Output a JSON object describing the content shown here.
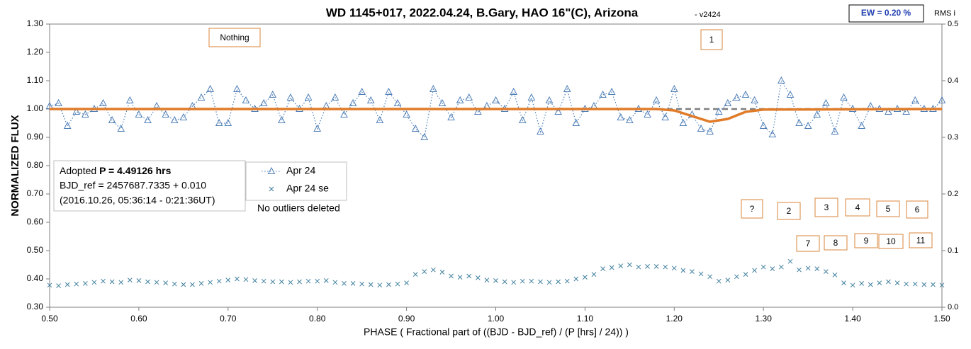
{
  "chart_data": {
    "type": "scatter",
    "title": "WD 1145+017, 2022.04.24, B.Gary, HAO 16\"(C), Arizona",
    "subtitle": "- v2424",
    "badge": "EW = 0.20 %",
    "x_label": "PHASE ( Fractional part of ((BJD - BJD_ref) / (P [hrs] / 24)) )",
    "y_label": "NORMALIZED FLUX",
    "y2_label": "RMS i",
    "info": {
      "lead": "Adopted ",
      "period": "P = 4.49126 hrs",
      "ref": "BJD_ref = 2457687.7335 + 0.010",
      "date": "(2016.10.26, 05:36:14 - 0:21:36UT)"
    },
    "note": "No outliers deleted",
    "annotations": [
      "Nothing",
      "1",
      "?",
      "2",
      "3",
      "4",
      "5",
      "6",
      "7",
      "8",
      "9",
      "10",
      "11"
    ],
    "x": [
      0.5,
      0.51,
      0.52,
      0.53,
      0.54,
      0.55,
      0.56,
      0.57,
      0.58,
      0.59,
      0.6,
      0.61,
      0.62,
      0.63,
      0.64,
      0.65,
      0.66,
      0.67,
      0.68,
      0.69,
      0.7,
      0.71,
      0.72,
      0.73,
      0.74,
      0.75,
      0.76,
      0.77,
      0.78,
      0.79,
      0.8,
      0.81,
      0.82,
      0.83,
      0.84,
      0.85,
      0.86,
      0.87,
      0.88,
      0.89,
      0.9,
      0.91,
      0.92,
      0.93,
      0.94,
      0.95,
      0.96,
      0.97,
      0.98,
      0.99,
      1.0,
      1.01,
      1.02,
      1.03,
      1.04,
      1.05,
      1.06,
      1.07,
      1.08,
      1.09,
      1.1,
      1.11,
      1.12,
      1.13,
      1.14,
      1.15,
      1.16,
      1.17,
      1.18,
      1.19,
      1.2,
      1.21,
      1.22,
      1.23,
      1.24,
      1.25,
      1.26,
      1.27,
      1.28,
      1.29,
      1.3,
      1.31,
      1.32,
      1.33,
      1.34,
      1.35,
      1.36,
      1.37,
      1.38,
      1.39,
      1.4,
      1.41,
      1.42,
      1.43,
      1.44,
      1.45,
      1.46,
      1.47,
      1.48,
      1.49,
      1.5
    ],
    "series": [
      {
        "name": "Apr 24",
        "color": "#4f7fb8",
        "marker": "triangle",
        "axis": "y",
        "values": [
          1.01,
          1.02,
          0.94,
          0.99,
          0.98,
          1.0,
          1.02,
          0.96,
          0.93,
          1.03,
          0.98,
          0.96,
          1.01,
          0.98,
          0.96,
          0.97,
          1.01,
          1.04,
          1.07,
          0.95,
          0.95,
          1.07,
          1.03,
          1.0,
          1.02,
          1.05,
          0.96,
          1.04,
          1.0,
          1.04,
          0.93,
          1.01,
          1.04,
          0.98,
          1.02,
          1.06,
          1.03,
          0.96,
          1.06,
          1.02,
          0.98,
          0.93,
          0.9,
          1.07,
          1.02,
          0.97,
          1.03,
          1.04,
          0.99,
          1.01,
          1.03,
          1.0,
          1.06,
          0.96,
          1.04,
          0.92,
          1.03,
          0.99,
          1.07,
          0.95,
          1.0,
          1.01,
          1.05,
          1.06,
          0.97,
          0.96,
          1.0,
          0.98,
          1.03,
          0.97,
          1.07,
          0.95,
          0.98,
          0.93,
          0.92,
          0.99,
          1.02,
          1.04,
          1.05,
          1.03,
          0.94,
          0.91,
          1.1,
          1.05,
          0.95,
          0.94,
          0.98,
          1.02,
          0.92,
          1.04,
          1.0,
          0.94,
          1.01,
          1.0,
          0.99,
          1.0,
          0.99,
          1.03,
          1.0,
          1.0,
          1.03
        ]
      },
      {
        "name": "Apr 24 se",
        "color": "#3f7f9e",
        "marker": "x",
        "axis": "y2",
        "values": [
          0.039,
          0.038,
          0.04,
          0.041,
          0.042,
          0.044,
          0.046,
          0.045,
          0.044,
          0.048,
          0.047,
          0.045,
          0.044,
          0.043,
          0.041,
          0.04,
          0.04,
          0.042,
          0.044,
          0.046,
          0.048,
          0.05,
          0.049,
          0.047,
          0.046,
          0.045,
          0.045,
          0.044,
          0.045,
          0.046,
          0.046,
          0.047,
          0.044,
          0.042,
          0.042,
          0.041,
          0.04,
          0.039,
          0.04,
          0.041,
          0.043,
          0.058,
          0.063,
          0.066,
          0.062,
          0.055,
          0.053,
          0.055,
          0.052,
          0.048,
          0.047,
          0.045,
          0.044,
          0.046,
          0.046,
          0.045,
          0.044,
          0.045,
          0.046,
          0.05,
          0.053,
          0.058,
          0.068,
          0.07,
          0.073,
          0.075,
          0.071,
          0.072,
          0.072,
          0.071,
          0.069,
          0.065,
          0.063,
          0.059,
          0.054,
          0.046,
          0.048,
          0.054,
          0.058,
          0.065,
          0.071,
          0.068,
          0.071,
          0.081,
          0.066,
          0.069,
          0.068,
          0.063,
          0.057,
          0.043,
          0.039,
          0.042,
          0.04,
          0.043,
          0.045,
          0.043,
          0.041,
          0.041,
          0.04,
          0.04,
          0.039
        ]
      },
      {
        "color": "#e07b28",
        "marker": "none",
        "axis": "y",
        "x": [
          0.5,
          1.18,
          1.2,
          1.22,
          1.24,
          1.26,
          1.28,
          1.3,
          1.5
        ],
        "values": [
          1.0,
          1.0,
          0.995,
          0.975,
          0.955,
          0.965,
          0.99,
          0.998,
          1.0
        ]
      }
    ],
    "reference_line": {
      "value": 1.0,
      "color": "#7f7f7f"
    },
    "xlim": [
      0.5,
      1.5
    ],
    "xticks": [
      {
        "value": 0.5,
        "label": "0.50"
      },
      {
        "value": 0.6,
        "label": "0.60"
      },
      {
        "value": 0.7,
        "label": "0.70"
      },
      {
        "value": 0.8,
        "label": "0.80"
      },
      {
        "value": 0.9,
        "label": "0.90"
      },
      {
        "value": 1.0,
        "label": "1.00"
      },
      {
        "value": 1.1,
        "label": "1.10"
      },
      {
        "value": 1.2,
        "label": "1.20"
      },
      {
        "value": 1.3,
        "label": "1.30"
      },
      {
        "value": 1.4,
        "label": "1.40"
      },
      {
        "value": 1.5,
        "label": "1.50"
      }
    ],
    "ylim": [
      0.3,
      1.3
    ],
    "yticks": [
      {
        "value": 0.3,
        "label": "0.30"
      },
      {
        "value": 0.4,
        "label": "0.40"
      },
      {
        "value": 0.5,
        "label": "0.50"
      },
      {
        "value": 0.6,
        "label": "0.60"
      },
      {
        "value": 0.7,
        "label": "0.70"
      },
      {
        "value": 0.8,
        "label": "0.80"
      },
      {
        "value": 0.9,
        "label": "0.90"
      },
      {
        "value": 1.0,
        "label": "1.00"
      },
      {
        "value": 1.1,
        "label": "1.10"
      },
      {
        "value": 1.2,
        "label": "1.20"
      },
      {
        "value": 1.3,
        "label": "1.30"
      }
    ],
    "y2lim": [
      0,
      0.5
    ],
    "y2ticks": [
      {
        "value": 0,
        "label": "0.0"
      },
      0.1,
      0.2,
      0.3,
      0.4,
      0.5
    ]
  }
}
